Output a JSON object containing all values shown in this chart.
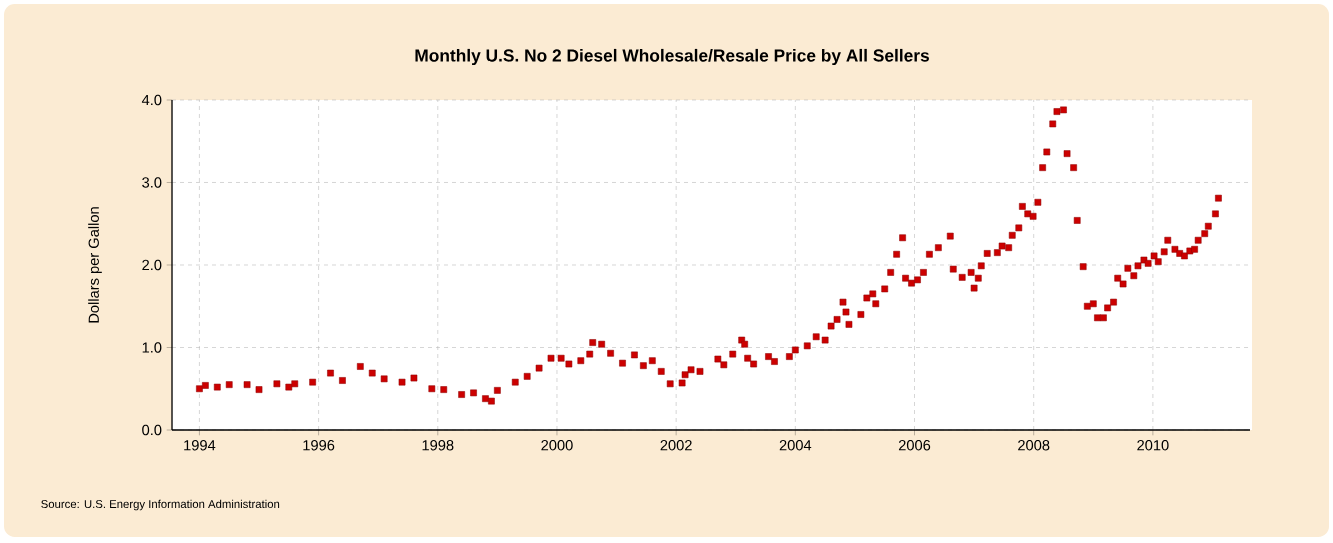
{
  "chart_data": {
    "type": "scatter",
    "title": "Monthly U.S. No 2 Diesel Wholesale/Resale Price by All Sellers",
    "ylabel": "Dollars per Gallon",
    "annotations": [
      "Source: U.S. Energy Information Administration"
    ],
    "x": [
      1994.0,
      1994.1,
      1994.3,
      1994.5,
      1994.8,
      1995.0,
      1995.3,
      1995.5,
      1995.6,
      1995.9,
      1996.2,
      1996.4,
      1996.7,
      1996.9,
      1997.1,
      1997.4,
      1997.6,
      1997.9,
      1998.1,
      1998.4,
      1998.6,
      1998.8,
      1998.9,
      1999.0,
      1999.3,
      1999.5,
      1999.7,
      1999.9,
      2000.07,
      2000.2,
      2000.4,
      2000.55,
      2000.6,
      2000.75,
      2000.9,
      2001.1,
      2001.3,
      2001.45,
      2001.6,
      2001.75,
      2001.9,
      2002.1,
      2002.15,
      2002.25,
      2002.4,
      2002.7,
      2002.8,
      2002.95,
      2003.1,
      2003.15,
      2003.2,
      2003.3,
      2003.55,
      2003.65,
      2003.9,
      2004.0,
      2004.2,
      2004.35,
      2004.5,
      2004.6,
      2004.7,
      2004.8,
      2004.85,
      2004.9,
      2005.1,
      2005.2,
      2005.3,
      2005.35,
      2005.5,
      2005.6,
      2005.7,
      2005.8,
      2005.85,
      2005.95,
      2006.05,
      2006.15,
      2006.25,
      2006.4,
      2006.6,
      2006.65,
      2006.8,
      2006.95,
      2007.0,
      2007.07,
      2007.12,
      2007.22,
      2007.39,
      2007.47,
      2007.58,
      2007.64,
      2007.75,
      2007.81,
      2007.9,
      2007.99,
      2008.07,
      2008.15,
      2008.22,
      2008.32,
      2008.39,
      2008.5,
      2008.56,
      2008.67,
      2008.73,
      2008.83,
      2008.9,
      2009.0,
      2009.07,
      2009.17,
      2009.24,
      2009.34,
      2009.41,
      2009.5,
      2009.58,
      2009.68,
      2009.75,
      2009.85,
      2009.92,
      2010.02,
      2010.09,
      2010.19,
      2010.25,
      2010.37,
      2010.45,
      2010.53,
      2010.62,
      2010.7,
      2010.76,
      2010.87,
      2010.93,
      2011.05,
      2011.1
    ],
    "values": [
      0.5,
      0.54,
      0.52,
      0.55,
      0.55,
      0.49,
      0.56,
      0.52,
      0.56,
      0.58,
      0.69,
      0.6,
      0.77,
      0.69,
      0.62,
      0.58,
      0.63,
      0.5,
      0.49,
      0.43,
      0.45,
      0.38,
      0.35,
      0.48,
      0.58,
      0.65,
      0.75,
      0.87,
      0.87,
      0.8,
      0.84,
      0.92,
      1.06,
      1.04,
      0.93,
      0.81,
      0.91,
      0.78,
      0.84,
      0.71,
      0.56,
      0.57,
      0.67,
      0.73,
      0.71,
      0.86,
      0.79,
      0.92,
      1.09,
      1.04,
      0.87,
      0.8,
      0.89,
      0.83,
      0.89,
      0.97,
      1.02,
      1.13,
      1.09,
      1.26,
      1.34,
      1.55,
      1.43,
      1.28,
      1.4,
      1.6,
      1.65,
      1.53,
      1.71,
      1.91,
      2.13,
      2.33,
      1.84,
      1.78,
      1.82,
      1.91,
      2.13,
      2.21,
      2.35,
      1.95,
      1.85,
      1.91,
      1.72,
      1.84,
      1.99,
      2.14,
      2.15,
      2.23,
      2.21,
      2.36,
      2.45,
      2.71,
      2.62,
      2.59,
      2.76,
      3.18,
      3.37,
      3.71,
      3.86,
      3.88,
      3.35,
      3.18,
      2.54,
      1.98,
      1.5,
      1.53,
      1.36,
      1.36,
      1.48,
      1.55,
      1.84,
      1.77,
      1.96,
      1.87,
      1.99,
      2.06,
      2.02,
      2.11,
      2.04,
      2.16,
      2.3,
      2.19,
      2.14,
      2.11,
      2.17,
      2.19,
      2.3,
      2.38,
      2.47,
      2.62,
      2.81
    ],
    "color": "#cc0000",
    "marker": "square",
    "xlim": [
      1993.54,
      2011.63
    ],
    "ylim": [
      0,
      4
    ],
    "xticks": [
      1994,
      1996,
      1998,
      2000,
      2002,
      2004,
      2006,
      2008,
      2010
    ],
    "yticks": [
      {
        "value": 0,
        "label": "0.0"
      },
      {
        "value": 1,
        "label": "1.0"
      },
      {
        "value": 2,
        "label": "2.0"
      },
      {
        "value": 3,
        "label": "3.0"
      },
      {
        "value": 4,
        "label": "4.0"
      }
    ],
    "grid": true
  }
}
